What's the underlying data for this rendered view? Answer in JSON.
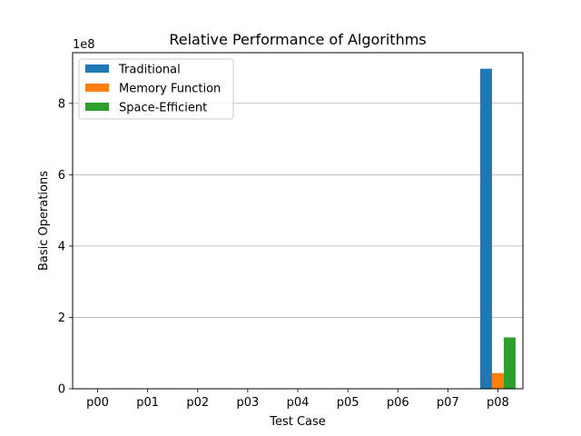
{
  "chart_data": {
    "type": "bar",
    "title": "Relative Performance of Algorithms",
    "xlabel": "Test Case",
    "ylabel": "Basic Operations",
    "y_scale_label": "1e8",
    "y_scale_factor": 100000000,
    "categories": [
      "p00",
      "p01",
      "p02",
      "p03",
      "p04",
      "p05",
      "p06",
      "p07",
      "p08"
    ],
    "series": [
      {
        "name": "Traditional",
        "color": "#1f77b4",
        "values": [
          0,
          0,
          0,
          0,
          0,
          0,
          0,
          0,
          897000000
        ]
      },
      {
        "name": "Memory Function",
        "color": "#ff7f0e",
        "values": [
          0,
          0,
          0,
          0,
          0,
          0,
          0,
          0,
          44000000
        ]
      },
      {
        "name": "Space-Efficient",
        "color": "#2ca02c",
        "values": [
          0,
          0,
          0,
          0,
          0,
          0,
          0,
          0,
          144000000
        ]
      }
    ],
    "ylim": [
      0,
      942000000
    ],
    "y_ticks": [
      0,
      200000000,
      400000000,
      600000000,
      800000000
    ],
    "y_tick_labels": [
      "0",
      "2",
      "4",
      "6",
      "8"
    ],
    "grid": "y",
    "legend_position": "top-left"
  }
}
